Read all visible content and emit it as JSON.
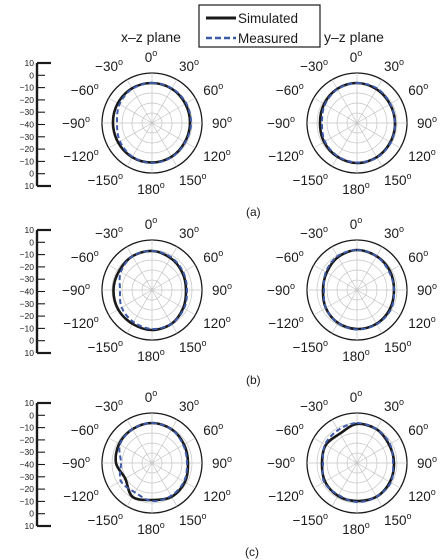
{
  "legend": {
    "simulated_label": "Simulated",
    "measured_label": "Measured",
    "simulated_color": "#1a1a1a",
    "measured_color": "#3d5aa8"
  },
  "plane_titles": [
    "x–z plane",
    "y–z plane"
  ],
  "angle_labels": [
    "0",
    "30",
    "60",
    "90",
    "120",
    "150",
    "180",
    "−150",
    "−120",
    "−90",
    "−60",
    "−30"
  ],
  "degree_symbol": "o",
  "panel_labels": [
    "(a)",
    "(b)",
    "(c)"
  ],
  "chart_data": [
    {
      "type": "polar-line",
      "panel": "(a)",
      "plane": "x–z plane",
      "scale_ticks": [
        10,
        0,
        -10,
        -20,
        -30,
        -40,
        -30,
        -20,
        -10,
        0,
        10
      ],
      "angles_deg": [
        0,
        30,
        60,
        90,
        120,
        150,
        180,
        -150,
        -120,
        -90,
        -60,
        -30
      ],
      "series": [
        {
          "name": "Simulated",
          "values": [
            0,
            -0.5,
            -1.5,
            -2,
            -2,
            -1,
            -0.5,
            -0.5,
            -1,
            -1,
            -0.5,
            0
          ]
        },
        {
          "name": "Measured",
          "values": [
            0,
            0,
            -0.5,
            -1,
            -1.5,
            -0.5,
            0,
            -1,
            -3,
            -5,
            -2.5,
            -0.5
          ]
        }
      ]
    },
    {
      "type": "polar-line",
      "panel": "(a)",
      "plane": "y–z plane",
      "angles_deg": [
        0,
        30,
        60,
        90,
        120,
        150,
        180,
        -150,
        -120,
        -90,
        -60,
        -30
      ],
      "series": [
        {
          "name": "Simulated",
          "values": [
            0,
            -1,
            -2,
            -2,
            -1.5,
            -0.5,
            0,
            -1,
            -2,
            -3,
            -2,
            -0.5
          ]
        },
        {
          "name": "Measured",
          "values": [
            0,
            0,
            -1.5,
            -2,
            -1,
            0,
            -0.5,
            -1.5,
            -3,
            -5,
            -3,
            -1
          ]
        }
      ]
    },
    {
      "type": "polar-line",
      "panel": "(b)",
      "plane": "x–z plane",
      "scale_ticks": [
        10,
        0,
        -10,
        -20,
        -30,
        -40,
        -30,
        -20,
        -10,
        0,
        10
      ],
      "angles_deg": [
        0,
        30,
        60,
        90,
        120,
        150,
        180,
        -150,
        -120,
        -90,
        -60,
        -30
      ],
      "series": [
        {
          "name": "Simulated",
          "values": [
            -1,
            -3,
            -5,
            -6,
            -4,
            -1,
            0,
            -1,
            -1,
            -1.5,
            -2,
            -1
          ]
        },
        {
          "name": "Measured",
          "values": [
            -1,
            -2,
            -4,
            -5,
            -3,
            -1,
            -1,
            -3,
            -5,
            -8,
            -4,
            -1
          ]
        }
      ]
    },
    {
      "type": "polar-line",
      "panel": "(b)",
      "plane": "y–z plane",
      "angles_deg": [
        0,
        30,
        60,
        90,
        120,
        150,
        180,
        -150,
        -120,
        -90,
        -60,
        -30
      ],
      "series": [
        {
          "name": "Simulated",
          "values": [
            0,
            -1,
            -2,
            -3,
            -2,
            -1,
            -1,
            -2,
            -4,
            -6,
            -5,
            -2
          ]
        },
        {
          "name": "Measured",
          "values": [
            0,
            -1,
            -3,
            -3,
            -1,
            -0.5,
            -0.5,
            -2,
            -4,
            -7,
            -4,
            -1
          ]
        }
      ]
    },
    {
      "type": "polar-line",
      "panel": "(c)",
      "plane": "x–z plane",
      "scale_ticks": [
        10,
        0,
        -10,
        -20,
        -30,
        -40,
        -30,
        -20,
        -10,
        0,
        10
      ],
      "angles_deg": [
        0,
        30,
        60,
        90,
        120,
        150,
        180,
        -150,
        -120,
        -90,
        -60,
        -30
      ],
      "series": [
        {
          "name": "Simulated",
          "values": [
            0,
            -1,
            -3,
            -4,
            -2,
            -1,
            -3,
            -1,
            -9,
            -4,
            -2,
            -1
          ]
        },
        {
          "name": "Measured",
          "values": [
            0,
            -1,
            -4,
            -5,
            -3,
            -2,
            -2,
            -6,
            -4,
            -9,
            -3,
            -1
          ]
        }
      ]
    },
    {
      "type": "polar-line",
      "panel": "(c)",
      "plane": "y–z plane",
      "angles_deg": [
        0,
        30,
        60,
        90,
        120,
        150,
        180,
        -150,
        -120,
        -90,
        -60,
        -30
      ],
      "series": [
        {
          "name": "Simulated",
          "values": [
            -1,
            -1,
            -3,
            -3,
            -2,
            -1,
            -2,
            -2,
            -3,
            -5,
            -4,
            -6
          ]
        },
        {
          "name": "Measured",
          "values": [
            0,
            -1,
            -2,
            -4,
            -1,
            -1,
            -1,
            -3,
            -2,
            -6,
            -3,
            -2
          ]
        }
      ]
    }
  ]
}
